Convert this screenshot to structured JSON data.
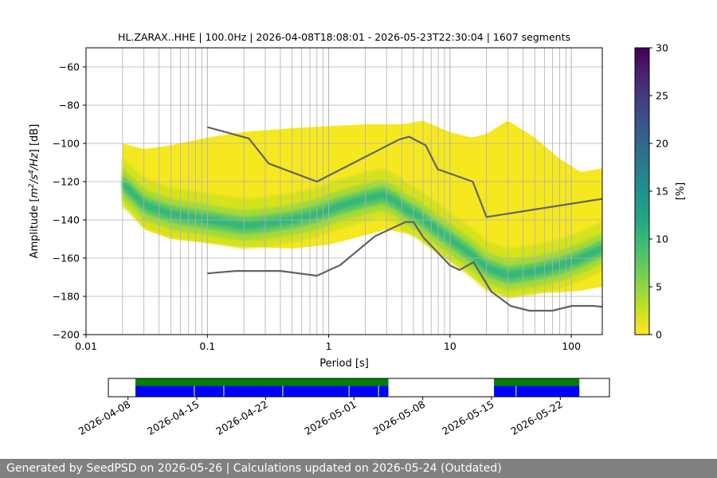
{
  "chart_data": [
    {
      "type": "heatmap",
      "title": "HL.ZARAX..HHE | 100.0Hz | 2026-04-08T18:08:01 - 2026-05-23T22:30:04 | 1607 segments",
      "xlabel": "Period [s]",
      "ylabel_parts": [
        "Amplitude [",
        "m",
        "2",
        "/s",
        "4",
        "/Hz",
        "] [dB]"
      ],
      "xscale": "log",
      "xlim": [
        0.01,
        180
      ],
      "ylim": [
        -200,
        -50
      ],
      "xticks": [
        0.01,
        0.1,
        1,
        10,
        100
      ],
      "xtick_labels": [
        "0.01",
        "0.1",
        "1",
        "10",
        "100"
      ],
      "yticks": [
        -200,
        -180,
        -160,
        -140,
        -120,
        -100,
        -80,
        -60
      ],
      "ytick_labels": [
        "−200",
        "−180",
        "−160",
        "−140",
        "−120",
        "−100",
        "−80",
        "−60"
      ],
      "grid": true,
      "colorbar": {
        "label": "[%]",
        "range": [
          0,
          30
        ],
        "ticks": [
          0,
          5,
          10,
          15,
          20,
          25,
          30
        ],
        "tick_labels": [
          "0",
          "5",
          "10",
          "15",
          "20",
          "25",
          "30"
        ],
        "colormap": "viridis_r"
      },
      "mode_curve": {
        "period": [
          0.02,
          0.025,
          0.03,
          0.05,
          0.1,
          0.2,
          0.3,
          0.5,
          0.8,
          1.2,
          2,
          2.8,
          3.5,
          4.5,
          5.5,
          7,
          10,
          15,
          20,
          30,
          50,
          80,
          120,
          180
        ],
        "db": [
          -121,
          -127,
          -132,
          -137,
          -140,
          -143,
          -142,
          -140,
          -137,
          -133,
          -129,
          -127,
          -130,
          -135,
          -138,
          -143,
          -150,
          -158,
          -165,
          -169,
          -167,
          -164,
          -160,
          -155
        ]
      },
      "upper_band": {
        "period": [
          0.02,
          0.03,
          0.05,
          0.1,
          0.2,
          0.5,
          1,
          2,
          3,
          4,
          5,
          6,
          7,
          10,
          15,
          20,
          30,
          50,
          80,
          120,
          180
        ],
        "db": [
          -100,
          -103,
          -101,
          -97,
          -94,
          -92,
          -91,
          -90,
          -90,
          -90,
          -89,
          -88,
          -90,
          -94,
          -97,
          -95,
          -88,
          -97,
          -108,
          -115,
          -113
        ]
      },
      "lower_band": {
        "period": [
          0.02,
          0.03,
          0.05,
          0.1,
          0.2,
          0.5,
          1,
          2,
          3,
          5,
          7,
          10,
          15,
          20,
          30,
          50,
          80,
          120,
          180
        ],
        "db": [
          -130,
          -145,
          -150,
          -152,
          -154,
          -155,
          -153,
          -148,
          -145,
          -148,
          -155,
          -160,
          -165,
          -170,
          -175,
          -178,
          -178,
          -177,
          -175
        ]
      },
      "nhnm": {
        "period": [
          0.1,
          0.22,
          0.32,
          0.8,
          3.8,
          4.6,
          6.3,
          7.9,
          15.4,
          20,
          180
        ],
        "db": [
          -91.5,
          -97.4,
          -110.5,
          -120,
          -98,
          -96.5,
          -101,
          -113.5,
          -120,
          -138.5,
          -129
        ]
      },
      "nlnm": {
        "period": [
          0.1,
          0.17,
          0.4,
          0.8,
          1.24,
          2.4,
          4.3,
          5,
          6,
          10,
          12,
          15.6,
          21.9,
          31.6,
          45,
          70,
          101,
          154,
          180
        ],
        "db": [
          -168,
          -166.7,
          -166.7,
          -169.2,
          -163.7,
          -148.6,
          -141.1,
          -141.1,
          -149,
          -163.8,
          -166.2,
          -162.1,
          -177.5,
          -185,
          -187.5,
          -187.5,
          -185,
          -185,
          -185.5
        ]
      }
    },
    {
      "type": "timeline",
      "xlim": [
        "2026-04-06",
        "2026-05-27"
      ],
      "xtick_labels": [
        "2026-04-08",
        "2026-04-15",
        "2026-04-22",
        "2026-05-01",
        "2026-05-08",
        "2026-05-15",
        "2026-05-22"
      ],
      "xtick_dates": [
        "2026-04-08",
        "2026-04-15",
        "2026-04-22",
        "2026-05-01",
        "2026-05-08",
        "2026-05-15",
        "2026-05-22"
      ],
      "coverage": [
        {
          "start": "2026-04-08T18:08",
          "end": "2026-05-04T12:00"
        },
        {
          "start": "2026-05-15T06:00",
          "end": "2026-05-23T22:30"
        }
      ],
      "gaps_marked": [
        "2026-04-14T18:00",
        "2026-04-17T18:00",
        "2026-04-23T18:00",
        "2026-04-30T12:00",
        "2026-05-03T12:00",
        "2026-05-17T12:00"
      ],
      "colors": {
        "top_band": "#008000",
        "bottom_band": "#0000ff",
        "gap_line": "#ffffff"
      }
    }
  ],
  "footer": {
    "text": "Generated by SeedPSD on 2026-05-26 | Calculations updated on 2026-05-24 (Outdated)"
  }
}
